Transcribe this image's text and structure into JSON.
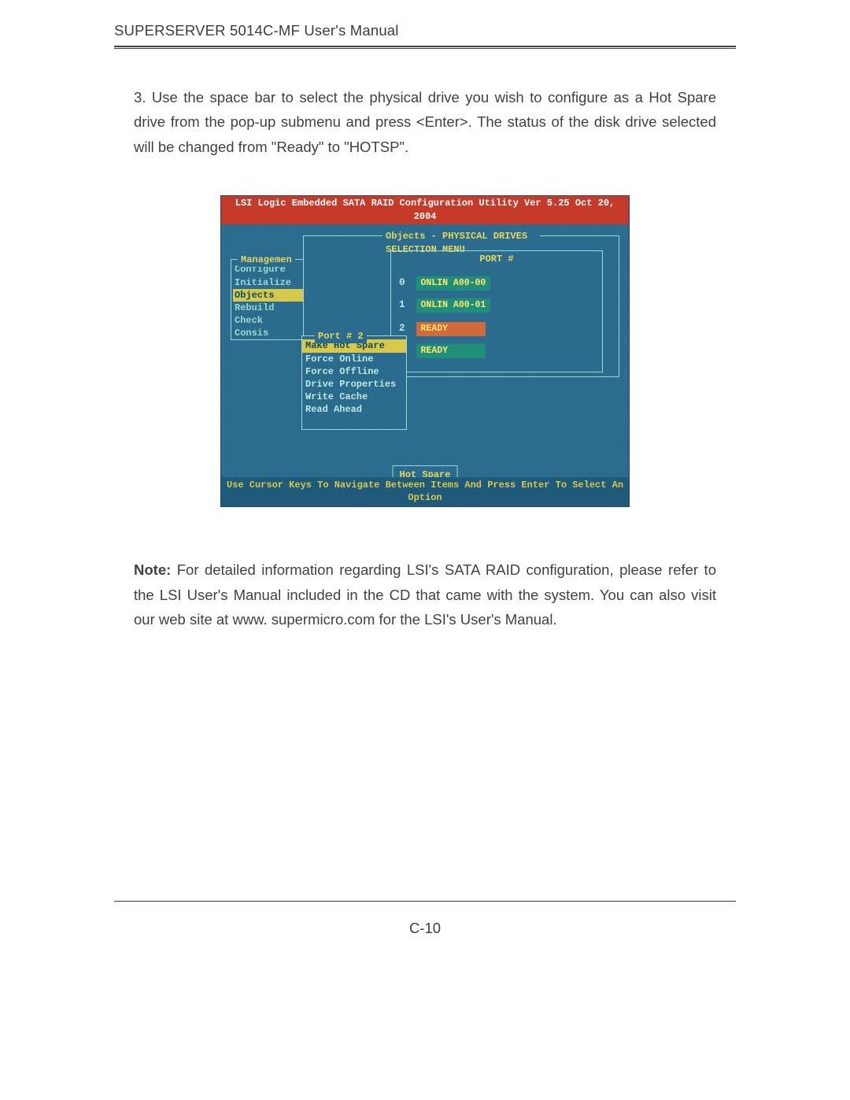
{
  "header": {
    "title": "SUPERSERVER 5014C-MF User's Manual"
  },
  "para1": "3. Use the space bar to select the physical drive you wish to configure as a Hot Spare drive from the pop-up submenu and press <Enter>.  The status of the disk drive selected will be changed from \"Ready\" to \"HOTSP\".",
  "note_label": "Note:",
  "para2": " For detailed information regarding LSI's SATA RAID configuration, please refer to the LSI User's Manual included in the CD that came with the system.  You can also visit  our  web site  at  www. supermicro.com for the LSI's User's Manual.",
  "page_number": "C-10",
  "bios": {
    "title": "LSI Logic Embedded SATA RAID Configuration Utility Ver 5.25 Oct 20, 2004",
    "footer": "Use Cursor Keys To Navigate Between Items And Press Enter To Select An Option",
    "mgmt_legend": "Managemen",
    "mgmt_items": [
      "Configure",
      "Initialize",
      "Objects",
      "Rebuild",
      "Check Consis"
    ],
    "mgmt_selected_index": 2,
    "objects_legend": "Objects - PHYSICAL DRIVES SELECTION MENU",
    "port_header": "PORT #",
    "drives": [
      {
        "index": "0",
        "status": "ONLIN A00-00",
        "bg": "#1f8f7a"
      },
      {
        "index": "1",
        "status": "ONLIN A00-01",
        "bg": "#1f8f7a"
      },
      {
        "index": "2",
        "status": "READY",
        "bg": "#d16a3a"
      },
      {
        "index": "",
        "status": "READY",
        "bg": "#1f8f7a"
      }
    ],
    "portmenu_legend": "Port # 2",
    "portmenu_items": [
      "Make Hot Spare",
      "Force Online",
      "Force Offline",
      "Drive Properties",
      "Write Cache",
      "Read Ahead"
    ],
    "portmenu_selected_index": 0,
    "hotspare_button": "Hot Spare",
    "colors": {
      "background": "#2a6b8e",
      "titlebar_bg": "#c63a2a",
      "titlebar_fg": "#ffffff",
      "border": "#9fd8d0",
      "legend_fg": "#e8d85a",
      "text_fg": "#c0e8e0",
      "highlight_bg": "#d8c84a",
      "highlight_fg": "#0e4a60",
      "drive_ok_bg": "#1f8f7a",
      "drive_sel_bg": "#d16a3a",
      "footer_fg": "#d8c84a"
    }
  }
}
